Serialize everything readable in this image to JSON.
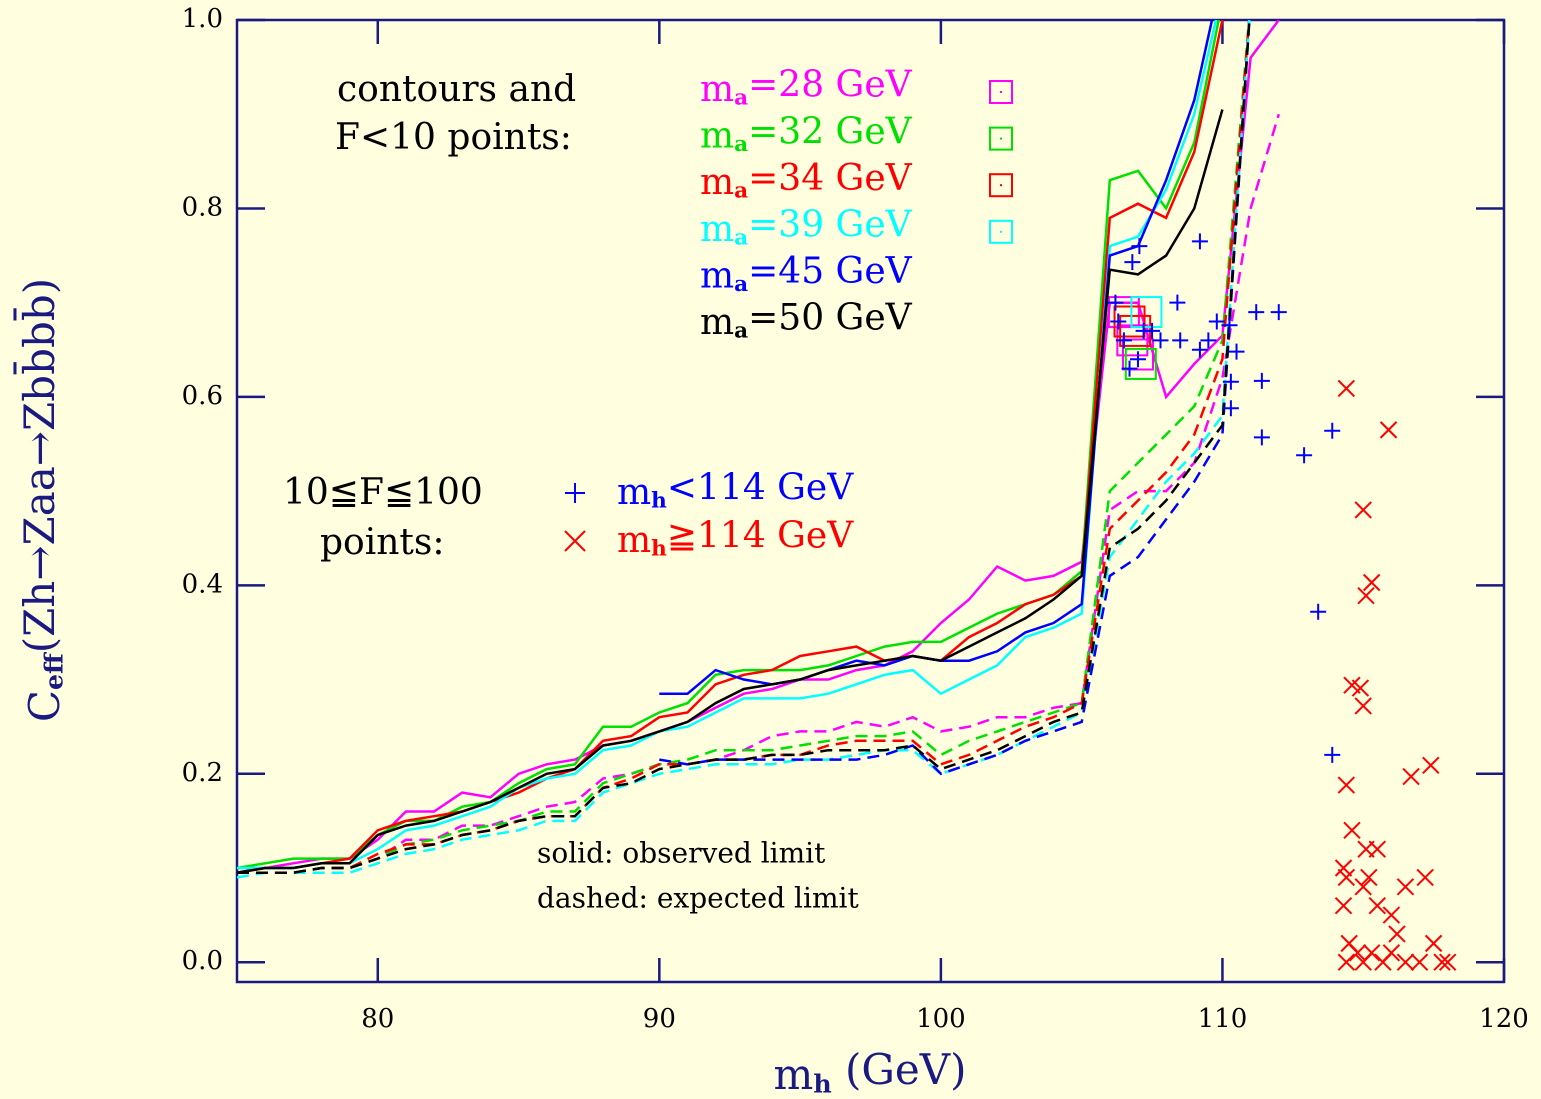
{
  "chart_data": {
    "type": "line",
    "xlabel": "mh (GeV)",
    "ylabel": "Ceff(Zh→Zaa→Zbb̄bb̄)",
    "xlim": [
      75,
      120
    ],
    "xticks": [
      80,
      90,
      100,
      110,
      120
    ],
    "ylim": [
      -0.021,
      1.0
    ],
    "yticks": [
      {
        "value": 0,
        "label": "0.0"
      },
      0.2,
      0.4,
      0.6,
      0.8,
      {
        "value": 1,
        "label": "1.0"
      }
    ],
    "contour_heading": [
      "contours and",
      "F<10 points:"
    ],
    "scatter_heading": [
      "10≦F≦100",
      "points:"
    ],
    "notes": [
      "solid: observed limit",
      "dashed: expected limit"
    ],
    "x": [
      75,
      76,
      77,
      78,
      79,
      80,
      81,
      82,
      83,
      84,
      85,
      86,
      87,
      88,
      89,
      90,
      91,
      92,
      93,
      94,
      95,
      96,
      97,
      98,
      99,
      100,
      101,
      102,
      103,
      104,
      105,
      106,
      107,
      108,
      109,
      110,
      111,
      112
    ],
    "series": [
      {
        "name": "ma=28 GeV",
        "color": "#ff00ff",
        "observed": [
          0.1,
          0.1,
          0.105,
          0.11,
          0.11,
          0.13,
          0.16,
          0.16,
          0.18,
          0.175,
          0.2,
          0.21,
          0.215,
          0.23,
          0.235,
          0.245,
          0.255,
          0.27,
          0.285,
          0.29,
          0.3,
          0.3,
          0.31,
          0.315,
          0.33,
          0.36,
          0.385,
          0.42,
          0.405,
          0.41,
          0.425,
          0.7,
          0.7,
          0.6,
          0.635,
          0.665,
          0.96,
          1.0
        ],
        "expected": [
          0.095,
          0.095,
          0.095,
          0.1,
          0.1,
          0.11,
          0.13,
          0.13,
          0.145,
          0.145,
          0.155,
          0.165,
          0.17,
          0.195,
          0.2,
          0.21,
          0.21,
          0.215,
          0.225,
          0.24,
          0.245,
          0.245,
          0.255,
          0.25,
          0.26,
          0.245,
          0.25,
          0.26,
          0.26,
          0.27,
          0.275,
          0.48,
          0.5,
          0.5,
          0.53,
          0.62,
          0.8,
          0.9
        ],
        "f10_x": [
          106.5,
          106.8,
          107.0
        ],
        "f10_y": [
          0.69,
          0.66,
          0.645
        ]
      },
      {
        "name": "ma=32 GeV",
        "color": "#00e000",
        "observed": [
          0.1,
          0.105,
          0.11,
          0.11,
          0.11,
          0.135,
          0.15,
          0.15,
          0.165,
          0.17,
          0.19,
          0.205,
          0.21,
          0.25,
          0.25,
          0.265,
          0.275,
          0.305,
          0.31,
          0.31,
          0.31,
          0.315,
          0.325,
          0.335,
          0.34,
          0.34,
          0.355,
          0.37,
          0.38,
          0.39,
          0.415,
          0.83,
          0.84,
          0.8,
          0.87,
          1.02,
          null,
          null
        ],
        "expected": [
          0.095,
          0.095,
          0.095,
          0.1,
          0.1,
          0.11,
          0.125,
          0.13,
          0.14,
          0.145,
          0.15,
          0.16,
          0.16,
          0.19,
          0.2,
          0.21,
          0.215,
          0.225,
          0.225,
          0.225,
          0.23,
          0.235,
          0.24,
          0.24,
          0.245,
          0.22,
          0.235,
          0.245,
          0.255,
          0.265,
          0.275,
          0.5,
          0.53,
          0.56,
          0.59,
          0.66,
          1.02,
          null
        ],
        "f10_x": [
          107.1
        ],
        "f10_y": [
          0.635
        ]
      },
      {
        "name": "ma=34 GeV",
        "color": "#ff0000",
        "observed": [
          0.095,
          0.1,
          0.1,
          0.105,
          0.11,
          0.14,
          0.15,
          0.155,
          0.16,
          0.17,
          0.18,
          0.195,
          0.205,
          0.235,
          0.24,
          0.26,
          0.265,
          0.295,
          0.305,
          0.31,
          0.325,
          0.33,
          0.335,
          0.32,
          0.325,
          0.32,
          0.345,
          0.36,
          0.38,
          0.39,
          0.41,
          0.79,
          0.805,
          0.79,
          0.86,
          1.0,
          null,
          null
        ],
        "expected": [
          0.095,
          0.095,
          0.095,
          0.1,
          0.1,
          0.115,
          0.125,
          0.125,
          0.135,
          0.14,
          0.15,
          0.155,
          0.155,
          0.185,
          0.195,
          0.21,
          0.21,
          0.215,
          0.215,
          0.22,
          0.22,
          0.23,
          0.235,
          0.235,
          0.235,
          0.21,
          0.22,
          0.235,
          0.25,
          0.26,
          0.275,
          0.46,
          0.49,
          0.52,
          0.56,
          0.64,
          1.02,
          null
        ],
        "f10_x": [
          106.7,
          106.9
        ],
        "f10_y": [
          0.68,
          0.67
        ]
      },
      {
        "name": "ma=39 GeV",
        "color": "#00ffff",
        "observed": [
          0.1,
          0.1,
          0.1,
          0.105,
          0.105,
          0.12,
          0.14,
          0.145,
          0.155,
          0.165,
          0.185,
          0.195,
          0.2,
          0.225,
          0.23,
          0.245,
          0.25,
          0.265,
          0.28,
          0.28,
          0.28,
          0.285,
          0.295,
          0.305,
          0.31,
          0.285,
          0.3,
          0.315,
          0.345,
          0.355,
          0.37,
          0.76,
          0.77,
          0.82,
          0.9,
          1.03,
          null,
          null
        ],
        "expected": [
          0.09,
          0.095,
          0.095,
          0.095,
          0.095,
          0.105,
          0.115,
          0.12,
          0.13,
          0.135,
          0.14,
          0.15,
          0.15,
          0.18,
          0.19,
          0.2,
          0.205,
          0.21,
          0.21,
          0.21,
          0.215,
          0.215,
          0.22,
          0.225,
          0.225,
          0.2,
          0.21,
          0.22,
          0.235,
          0.25,
          0.265,
          0.43,
          0.47,
          0.51,
          0.54,
          0.58,
          1.02,
          null
        ],
        "f10_x": [
          107.3
        ],
        "f10_y": [
          0.69
        ]
      },
      {
        "name": "ma=45 GeV",
        "color": "#0000ff",
        "observed": [
          null,
          null,
          null,
          null,
          null,
          null,
          null,
          null,
          null,
          null,
          null,
          null,
          null,
          null,
          null,
          0.285,
          0.285,
          0.31,
          0.3,
          0.295,
          0.3,
          0.31,
          0.32,
          0.315,
          0.325,
          0.32,
          0.32,
          0.33,
          0.35,
          0.36,
          0.38,
          0.75,
          0.76,
          0.83,
          0.915,
          1.05,
          null,
          null
        ],
        "expected": [
          null,
          null,
          null,
          null,
          null,
          null,
          null,
          null,
          null,
          null,
          null,
          null,
          null,
          null,
          null,
          0.215,
          0.21,
          0.215,
          0.215,
          0.215,
          0.215,
          0.215,
          0.215,
          0.22,
          0.23,
          0.2,
          0.21,
          0.22,
          0.235,
          0.245,
          0.255,
          0.41,
          0.43,
          0.47,
          0.51,
          0.56,
          1.02,
          null
        ]
      },
      {
        "name": "ma=50 GeV",
        "color": "#000000",
        "observed": [
          0.095,
          0.1,
          0.1,
          0.105,
          0.105,
          0.135,
          0.145,
          0.15,
          0.16,
          0.17,
          0.185,
          0.2,
          0.205,
          0.23,
          0.235,
          0.245,
          0.255,
          0.275,
          0.29,
          0.295,
          0.3,
          0.31,
          0.315,
          0.32,
          0.325,
          0.32,
          0.335,
          0.35,
          0.365,
          0.385,
          0.41,
          0.735,
          0.73,
          0.75,
          0.8,
          0.905,
          null,
          null
        ],
        "expected": [
          0.095,
          0.095,
          0.095,
          0.1,
          0.1,
          0.11,
          0.12,
          0.125,
          0.135,
          0.14,
          0.15,
          0.155,
          0.155,
          0.185,
          0.19,
          0.205,
          0.21,
          0.215,
          0.215,
          0.22,
          0.22,
          0.225,
          0.225,
          0.225,
          0.23,
          0.205,
          0.215,
          0.225,
          0.24,
          0.255,
          0.265,
          0.44,
          0.46,
          0.49,
          0.53,
          0.57,
          1.02,
          null
        ]
      }
    ],
    "scatter": [
      {
        "name": "mh<114 GeV",
        "color": "#0000ff",
        "marker": "plus",
        "x": [
          106.2,
          106.3,
          106.5,
          106.7,
          106.8,
          107.05,
          107.0,
          107.2,
          107.5,
          107.8,
          108.4,
          108.5,
          109.2,
          109.2,
          109.5,
          109.8,
          110.25,
          110.3,
          110.3,
          110.5,
          111.2,
          112.0,
          111.4,
          111.4,
          112.9,
          113.9,
          113.4,
          113.9
        ],
        "y": [
          0.7,
          0.68,
          0.66,
          0.63,
          0.743,
          0.76,
          0.64,
          0.67,
          0.67,
          0.66,
          0.7,
          0.66,
          0.765,
          0.65,
          0.66,
          0.68,
          0.676,
          0.616,
          0.588,
          0.648,
          0.69,
          0.69,
          0.617,
          0.557,
          0.538,
          0.564,
          0.372,
          0.22
        ]
      },
      {
        "name": "mh≧114 GeV",
        "color": "#ff0000",
        "marker": "cross",
        "x": [
          114.4,
          115.9,
          115.0,
          115.3,
          115.1,
          114.6,
          114.9,
          115.0,
          114.4,
          116.7,
          117.4,
          114.6,
          114.3,
          114.4,
          115.1,
          115.5,
          115.0,
          115.2,
          116.5,
          117.2,
          114.3,
          115.5,
          116.0,
          114.5,
          114.8,
          115.0,
          115.3,
          115.7,
          116.0,
          116.5,
          117.0,
          117.5,
          117.8,
          118.0,
          114.4,
          116.2
        ],
        "y": [
          0.609,
          0.565,
          0.48,
          0.403,
          0.389,
          0.294,
          0.291,
          0.272,
          0.188,
          0.197,
          0.209,
          0.14,
          0.1,
          0.09,
          0.12,
          0.12,
          0.08,
          0.09,
          0.08,
          0.09,
          0.06,
          0.06,
          0.05,
          0.02,
          0.01,
          0.0,
          0.01,
          0.0,
          0.01,
          0.0,
          0.0,
          0.02,
          0.0,
          0.0,
          0.0,
          0.03
        ]
      }
    ]
  }
}
